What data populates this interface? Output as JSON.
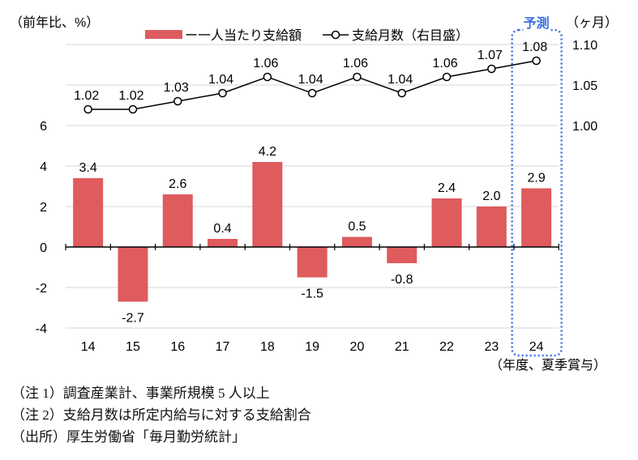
{
  "chart_data": {
    "type": "bar",
    "categories": [
      "14",
      "15",
      "16",
      "17",
      "18",
      "19",
      "20",
      "21",
      "22",
      "23",
      "24"
    ],
    "series": [
      {
        "name": "一人当たり支給額",
        "type": "bar",
        "axis": "left",
        "color": "#de5b5e",
        "values": [
          3.4,
          -2.7,
          2.6,
          0.4,
          4.2,
          -1.5,
          0.5,
          -0.8,
          2.4,
          2.0,
          2.9
        ],
        "labels": [
          "3.4",
          "-2.7",
          "2.6",
          "0.4",
          "4.2",
          "-1.5",
          "0.5",
          "-0.8",
          "2.4",
          "2.0",
          "2.9"
        ]
      },
      {
        "name": "支給月数（右目盛）",
        "type": "line",
        "axis": "right",
        "color": "#000000",
        "values": [
          1.02,
          1.02,
          1.03,
          1.04,
          1.06,
          1.04,
          1.06,
          1.04,
          1.06,
          1.07,
          1.08
        ],
        "labels": [
          "1.02",
          "1.02",
          "1.03",
          "1.04",
          "1.06",
          "1.04",
          "1.06",
          "1.04",
          "1.06",
          "1.07",
          "1.08"
        ]
      }
    ],
    "left_axis": {
      "label": "（前年比、%）",
      "ylim": [
        -4,
        6
      ],
      "ticks": [
        "-4",
        "-2",
        "0",
        "2",
        "4",
        "6"
      ]
    },
    "right_axis": {
      "label": "（ヶ月）",
      "ylim": [
        1.0,
        1.1
      ],
      "ticks": [
        "1.00",
        "1.05",
        "1.10"
      ]
    },
    "xlabel": "（年度、夏季賞与）",
    "forecast": {
      "label": "予測",
      "category": "24",
      "color": "#3b6fe0"
    },
    "grid": true,
    "legend_placement": "top"
  },
  "notes": [
    "（注 1）調査産業計、事業所規模 5 人以上",
    "（注 2）支給月数は所定内給与に対する支給割合",
    "（出所）厚生労働省「毎月勤労統計」"
  ]
}
